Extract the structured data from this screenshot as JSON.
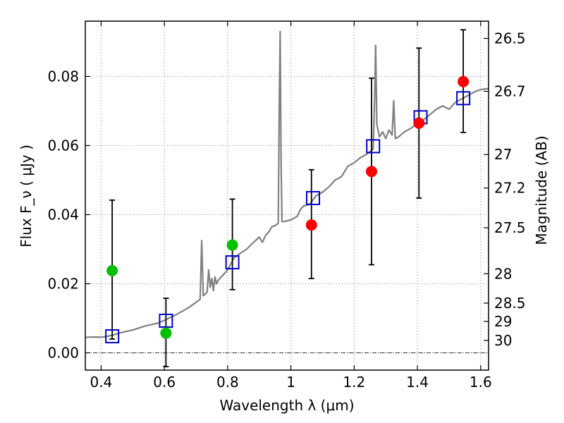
{
  "chart_data": {
    "type": "scatter",
    "xlabel": "Wavelength  λ (μm)",
    "ylabel": "Flux  F_ν  ( μJy )",
    "y2label": "Magnitude (AB)",
    "xlim": [
      0.35,
      1.625
    ],
    "ylim": [
      -0.005,
      0.096
    ],
    "grid": true,
    "x_ticks": [
      {
        "value": 0.4,
        "label": "0.4"
      },
      {
        "value": 0.6,
        "label": "0.6"
      },
      {
        "value": 0.8,
        "label": "0.8"
      },
      {
        "value": 1.0,
        "label": "1"
      },
      {
        "value": 1.2,
        "label": "1.2"
      },
      {
        "value": 1.4,
        "label": "1.4"
      },
      {
        "value": 1.6,
        "label": "1.6"
      }
    ],
    "y_ticks": [
      {
        "value": 0.0,
        "label": "0.00"
      },
      {
        "value": 0.02,
        "label": "0.02"
      },
      {
        "value": 0.04,
        "label": "0.04"
      },
      {
        "value": 0.06,
        "label": "0.06"
      },
      {
        "value": 0.08,
        "label": "0.08"
      }
    ],
    "y2_ticks": [
      {
        "label": "26.5",
        "flux": 0.091
      },
      {
        "label": "26.7",
        "flux": 0.0757
      },
      {
        "label": "27",
        "flux": 0.0574
      },
      {
        "label": "27.2",
        "flux": 0.0477
      },
      {
        "label": "27.5",
        "flux": 0.0362
      },
      {
        "label": "28",
        "flux": 0.0229
      },
      {
        "label": "28.5",
        "flux": 0.0144
      },
      {
        "label": "29",
        "flux": 0.0091
      },
      {
        "label": "30",
        "flux": 0.0036
      }
    ],
    "zero_line": 0.0,
    "colors": {
      "spectrum": "#808080",
      "model": "#0000cc",
      "detected": "#ff0000",
      "other": "#00c000",
      "errorbar": "#000000",
      "grid": "#888888"
    },
    "spectrum": [
      [
        0.35,
        0.0045
      ],
      [
        0.38,
        0.0046
      ],
      [
        0.4,
        0.0045
      ],
      [
        0.42,
        0.0048
      ],
      [
        0.44,
        0.0052
      ],
      [
        0.46,
        0.0058
      ],
      [
        0.48,
        0.0062
      ],
      [
        0.5,
        0.0066
      ],
      [
        0.52,
        0.0072
      ],
      [
        0.54,
        0.0078
      ],
      [
        0.56,
        0.0082
      ],
      [
        0.58,
        0.0086
      ],
      [
        0.6,
        0.0094
      ],
      [
        0.62,
        0.0103
      ],
      [
        0.64,
        0.0112
      ],
      [
        0.66,
        0.0122
      ],
      [
        0.68,
        0.0133
      ],
      [
        0.7,
        0.0146
      ],
      [
        0.713,
        0.0155
      ],
      [
        0.718,
        0.0325
      ],
      [
        0.723,
        0.0165
      ],
      [
        0.735,
        0.0175
      ],
      [
        0.74,
        0.024
      ],
      [
        0.745,
        0.019
      ],
      [
        0.75,
        0.0215
      ],
      [
        0.755,
        0.018
      ],
      [
        0.76,
        0.022
      ],
      [
        0.765,
        0.02
      ],
      [
        0.77,
        0.021
      ],
      [
        0.78,
        0.022
      ],
      [
        0.8,
        0.024
      ],
      [
        0.82,
        0.0275
      ],
      [
        0.84,
        0.0288
      ],
      [
        0.86,
        0.03
      ],
      [
        0.88,
        0.0318
      ],
      [
        0.9,
        0.0335
      ],
      [
        0.91,
        0.032
      ],
      [
        0.92,
        0.034
      ],
      [
        0.93,
        0.035
      ],
      [
        0.94,
        0.0365
      ],
      [
        0.95,
        0.0368
      ],
      [
        0.96,
        0.0375
      ],
      [
        0.963,
        0.07
      ],
      [
        0.966,
        0.093
      ],
      [
        0.969,
        0.055
      ],
      [
        0.972,
        0.038
      ],
      [
        0.98,
        0.038
      ],
      [
        1.0,
        0.0385
      ],
      [
        1.02,
        0.0395
      ],
      [
        1.03,
        0.0415
      ],
      [
        1.04,
        0.0425
      ],
      [
        1.06,
        0.043
      ],
      [
        1.08,
        0.0455
      ],
      [
        1.1,
        0.0465
      ],
      [
        1.12,
        0.048
      ],
      [
        1.14,
        0.05
      ],
      [
        1.16,
        0.051
      ],
      [
        1.18,
        0.054
      ],
      [
        1.2,
        0.055
      ],
      [
        1.22,
        0.0565
      ],
      [
        1.24,
        0.0575
      ],
      [
        1.26,
        0.059
      ],
      [
        1.265,
        0.074
      ],
      [
        1.268,
        0.089
      ],
      [
        1.272,
        0.066
      ],
      [
        1.28,
        0.0625
      ],
      [
        1.29,
        0.064
      ],
      [
        1.3,
        0.062
      ],
      [
        1.31,
        0.0645
      ],
      [
        1.32,
        0.063
      ],
      [
        1.325,
        0.073
      ],
      [
        1.33,
        0.062
      ],
      [
        1.34,
        0.0625
      ],
      [
        1.36,
        0.064
      ],
      [
        1.38,
        0.065
      ],
      [
        1.4,
        0.0665
      ],
      [
        1.42,
        0.0675
      ],
      [
        1.44,
        0.069
      ],
      [
        1.46,
        0.0705
      ],
      [
        1.48,
        0.0715
      ],
      [
        1.5,
        0.0705
      ],
      [
        1.52,
        0.0725
      ],
      [
        1.54,
        0.0735
      ],
      [
        1.56,
        0.0745
      ],
      [
        1.58,
        0.0755
      ],
      [
        1.6,
        0.0762
      ],
      [
        1.625,
        0.0765
      ]
    ],
    "model_points": [
      {
        "x": 0.435,
        "y": 0.0048
      },
      {
        "x": 0.605,
        "y": 0.0093
      },
      {
        "x": 0.815,
        "y": 0.0262
      },
      {
        "x": 1.07,
        "y": 0.0448
      },
      {
        "x": 1.26,
        "y": 0.0598
      },
      {
        "x": 1.41,
        "y": 0.0682
      },
      {
        "x": 1.545,
        "y": 0.0737
      }
    ],
    "detections": [
      {
        "x": 1.065,
        "y": 0.037,
        "color_key": "detected",
        "err_low": 0.0215,
        "err_high": 0.053
      },
      {
        "x": 1.255,
        "y": 0.0525,
        "color_key": "detected",
        "err_low": 0.0255,
        "err_high": 0.0795
      },
      {
        "x": 1.405,
        "y": 0.0665,
        "color_key": "detected",
        "err_low": 0.0448,
        "err_high": 0.0882
      },
      {
        "x": 1.545,
        "y": 0.0785,
        "color_key": "detected",
        "err_low": 0.0638,
        "err_high": 0.0935
      }
    ],
    "other_points": [
      {
        "x": 0.435,
        "y": 0.0238,
        "color_key": "other",
        "err_low": 0.004,
        "err_high": 0.0442
      },
      {
        "x": 0.605,
        "y": 0.0057,
        "color_key": "other",
        "err_low": -0.004,
        "err_high": 0.0158
      },
      {
        "x": 0.815,
        "y": 0.0312,
        "color_key": "other",
        "err_low": 0.0183,
        "err_high": 0.0445
      }
    ]
  }
}
